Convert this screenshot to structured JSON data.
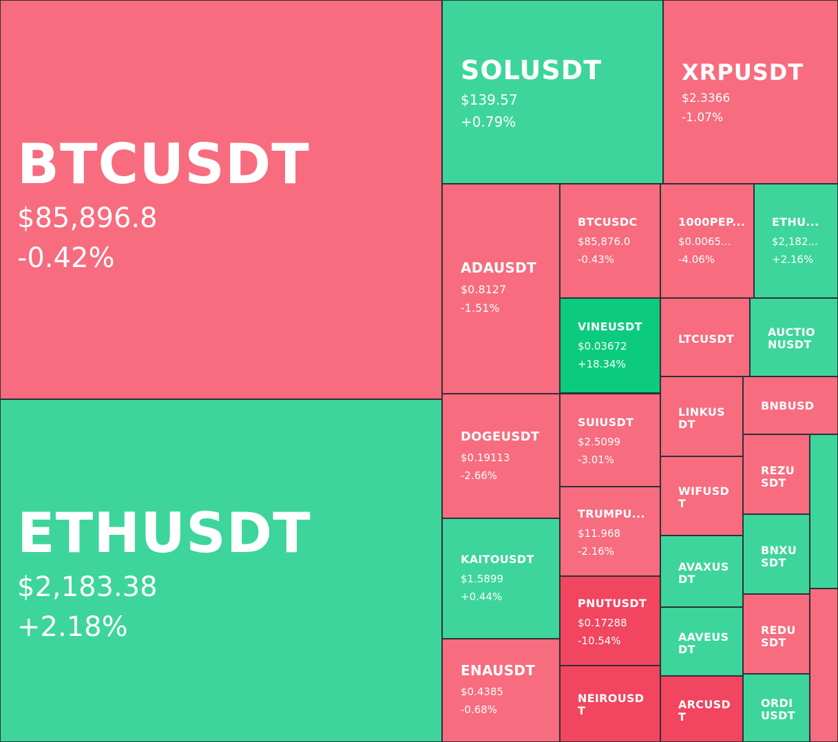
{
  "chart_data": {
    "type": "treemap",
    "colors": {
      "up": "#3dd59b",
      "up_strong": "#0ccb7f",
      "down": "#f76c7e",
      "down_strong": "#f2455f"
    },
    "tiles": [
      {
        "symbol": "BTCUSDT",
        "price": "$85,896.8",
        "change": "-0.42%",
        "trend": "down"
      },
      {
        "symbol": "ETHUSDT",
        "price": "$2,183.38",
        "change": "+2.18%",
        "trend": "up"
      },
      {
        "symbol": "SOLUSDT",
        "price": "$139.57",
        "change": "+0.79%",
        "trend": "up"
      },
      {
        "symbol": "XRPUSDT",
        "price": "$2.3366",
        "change": "-1.07%",
        "trend": "down"
      },
      {
        "symbol": "ADAUSDT",
        "price": "$0.8127",
        "change": "-1.51%",
        "trend": "down"
      },
      {
        "symbol": "BTCUSDC",
        "price": "$85,876.0",
        "change": "-0.43%",
        "trend": "down"
      },
      {
        "symbol": "1000PEP...",
        "price": "$0.0065...",
        "change": "-4.06%",
        "trend": "down"
      },
      {
        "symbol": "ETHU...",
        "price": "$2,182...",
        "change": "+2.16%",
        "trend": "up"
      },
      {
        "symbol": "VINEUSDT",
        "price": "$0.03672",
        "change": "+18.34%",
        "trend": "up_strong"
      },
      {
        "symbol": "LTCUSDT",
        "price": "",
        "change": "",
        "trend": "down"
      },
      {
        "symbol": "AUCTIO\nNUSDT",
        "price": "",
        "change": "",
        "trend": "up"
      },
      {
        "symbol": "DOGEUSDT",
        "price": "$0.19113",
        "change": "-2.66%",
        "trend": "down"
      },
      {
        "symbol": "SUIUSDT",
        "price": "$2.5099",
        "change": "-3.01%",
        "trend": "down"
      },
      {
        "symbol": "LINKUS\nDT",
        "price": "",
        "change": "",
        "trend": "down"
      },
      {
        "symbol": "BNBUSD",
        "price": "",
        "change": "",
        "trend": "down"
      },
      {
        "symbol": "REZU\nSDT",
        "price": "",
        "change": "",
        "trend": "down"
      },
      {
        "symbol": "",
        "price": "",
        "change": "",
        "trend": "up"
      },
      {
        "symbol": "TRUMPU...",
        "price": "$11.968",
        "change": "-2.16%",
        "trend": "down"
      },
      {
        "symbol": "WIFUSD\nT",
        "price": "",
        "change": "",
        "trend": "down"
      },
      {
        "symbol": "BNXU\nSDT",
        "price": "",
        "change": "",
        "trend": "up"
      },
      {
        "symbol": "KAITOUSDT",
        "price": "$1.5899",
        "change": "+0.44%",
        "trend": "up"
      },
      {
        "symbol": "AVAXUS\nDT",
        "price": "",
        "change": "",
        "trend": "up"
      },
      {
        "symbol": "PNUTUSDT",
        "price": "$0.17288",
        "change": "-10.54%",
        "trend": "down_strong"
      },
      {
        "symbol": "",
        "price": "",
        "change": "",
        "trend": "down"
      },
      {
        "symbol": "AAVEUS\nDT",
        "price": "",
        "change": "",
        "trend": "up"
      },
      {
        "symbol": "REDU\nSDT",
        "price": "",
        "change": "",
        "trend": "down"
      },
      {
        "symbol": "ENAUSDT",
        "price": "$0.4385",
        "change": "-0.68%",
        "trend": "down"
      },
      {
        "symbol": "NEIROUSD\nT",
        "price": "",
        "change": "",
        "trend": "down_strong"
      },
      {
        "symbol": "ARCUSD\nT",
        "price": "",
        "change": "",
        "trend": "down_strong"
      },
      {
        "symbol": "ORDI\nUSDT",
        "price": "",
        "change": "",
        "trend": "up"
      }
    ]
  }
}
